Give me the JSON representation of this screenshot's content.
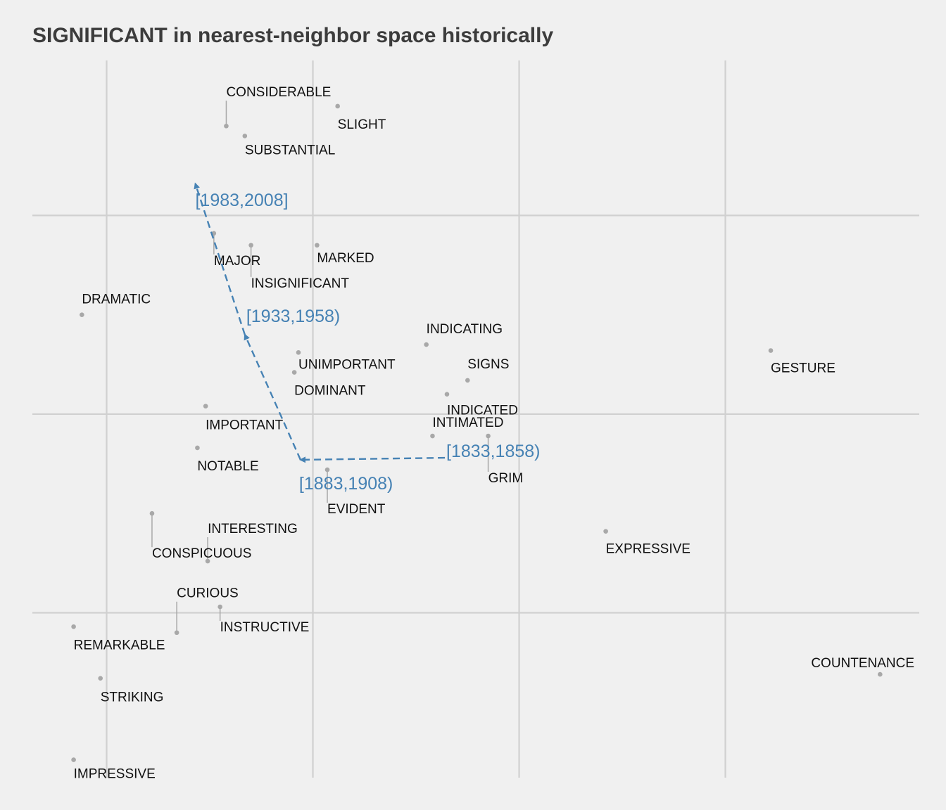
{
  "title": "SIGNIFICANT in nearest-neighbor space historically",
  "chart_data": {
    "type": "scatter",
    "title": "SIGNIFICANT in nearest-neighbor space historically",
    "xlabel": "",
    "ylabel": "",
    "xlim": [
      -0.36,
      3.94
    ],
    "ylim": [
      -1.83,
      1.78
    ],
    "xgrid": [
      0,
      1,
      2,
      3
    ],
    "ygrid": [
      -1,
      0,
      1
    ],
    "grid": true,
    "axis_tick_labels": false,
    "colors": {
      "background": "#f0f0f0",
      "grid": "#d0d0d0",
      "point": "#a8a8a8",
      "trajectory": "#4682b4",
      "label": "#111111"
    },
    "words": [
      {
        "word": "CONSIDERABLE",
        "x": 0.58,
        "y": 1.45
      },
      {
        "word": "SLIGHT",
        "x": 1.12,
        "y": 1.55
      },
      {
        "word": "SUBSTANTIAL",
        "x": 0.67,
        "y": 1.4
      },
      {
        "word": "MAJOR",
        "x": 0.52,
        "y": 0.91
      },
      {
        "word": "INSIGNIFICANT",
        "x": 0.7,
        "y": 0.85
      },
      {
        "word": "MARKED",
        "x": 1.02,
        "y": 0.85
      },
      {
        "word": "DRAMATIC",
        "x": -0.12,
        "y": 0.5
      },
      {
        "word": "INDICATING",
        "x": 1.55,
        "y": 0.35
      },
      {
        "word": "UNIMPORTANT",
        "x": 0.93,
        "y": 0.31
      },
      {
        "word": "SIGNS",
        "x": 1.75,
        "y": 0.17
      },
      {
        "word": "DOMINANT",
        "x": 0.91,
        "y": 0.21
      },
      {
        "word": "GESTURE",
        "x": 3.22,
        "y": 0.32
      },
      {
        "word": "INDICATED",
        "x": 1.65,
        "y": 0.1
      },
      {
        "word": "IMPORTANT",
        "x": 0.48,
        "y": 0.04
      },
      {
        "word": "INTIMATED",
        "x": 1.58,
        "y": -0.11
      },
      {
        "word": "NOTABLE",
        "x": 0.44,
        "y": -0.17
      },
      {
        "word": "GRIM",
        "x": 1.85,
        "y": -0.11
      },
      {
        "word": "EVIDENT",
        "x": 1.07,
        "y": -0.28
      },
      {
        "word": "EXPRESSIVE",
        "x": 2.42,
        "y": -0.59
      },
      {
        "word": "INTERESTING",
        "x": 0.49,
        "y": -0.74
      },
      {
        "word": "CONSPICUOUS",
        "x": 0.22,
        "y": -0.5
      },
      {
        "word": "CURIOUS",
        "x": 0.34,
        "y": -1.1
      },
      {
        "word": "INSTRUCTIVE",
        "x": 0.55,
        "y": -0.97
      },
      {
        "word": "REMARKABLE",
        "x": -0.16,
        "y": -1.07
      },
      {
        "word": "STRIKING",
        "x": -0.03,
        "y": -1.33
      },
      {
        "word": "COUNTENANCE",
        "x": 3.75,
        "y": -1.31
      },
      {
        "word": "IMPRESSIVE",
        "x": -0.16,
        "y": -1.74
      }
    ],
    "series": [
      {
        "points": [
          {
            "period": "[1833,1858)",
            "x": 1.64,
            "y": -0.22
          },
          {
            "period": "[1883,1908)",
            "x": 0.94,
            "y": -0.23
          },
          {
            "period": "[1933,1958)",
            "x": 0.67,
            "y": 0.4
          },
          {
            "period": "[1983,2008]",
            "x": 0.43,
            "y": 1.16
          }
        ]
      }
    ]
  }
}
